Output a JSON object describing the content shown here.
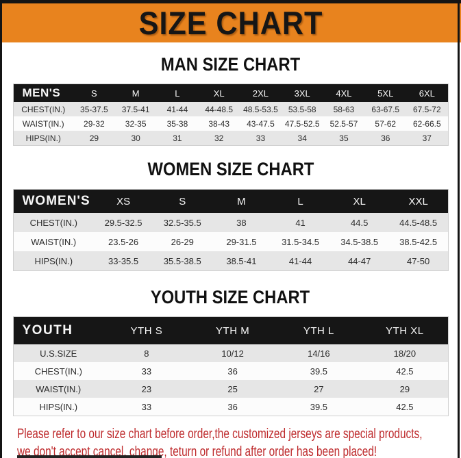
{
  "title": "SIZE CHART",
  "colors": {
    "banner_orange": "#E8831E",
    "header_black": "#161616",
    "row_gray": "#E6E6E6",
    "notice_red": "#BE2A2C"
  },
  "sections": [
    {
      "key": "men",
      "heading": "MAN SIZE CHART",
      "label": "MEN'S",
      "columns": [
        "S",
        "M",
        "L",
        "XL",
        "2XL",
        "3XL",
        "4XL",
        "5XL",
        "6XL"
      ],
      "rows": [
        {
          "label": "CHEST(IN.)",
          "values": [
            "35-37.5",
            "37.5-41",
            "41-44",
            "44-48.5",
            "48.5-53.5",
            "53.5-58",
            "58-63",
            "63-67.5",
            "67.5-72"
          ]
        },
        {
          "label": "WAIST(IN.)",
          "values": [
            "29-32",
            "32-35",
            "35-38",
            "38-43",
            "43-47.5",
            "47.5-52.5",
            "52.5-57",
            "57-62",
            "62-66.5"
          ]
        },
        {
          "label": "HIPS(IN.)",
          "values": [
            "29",
            "30",
            "31",
            "32",
            "33",
            "34",
            "35",
            "36",
            "37"
          ]
        }
      ]
    },
    {
      "key": "women",
      "heading": "WOMEN SIZE CHART",
      "label": "WOMEN'S",
      "columns": [
        "XS",
        "S",
        "M",
        "L",
        "XL",
        "XXL"
      ],
      "rows": [
        {
          "label": "CHEST(IN.)",
          "values": [
            "29.5-32.5",
            "32.5-35.5",
            "38",
            "41",
            "44.5",
            "44.5-48.5"
          ]
        },
        {
          "label": "WAIST(IN.)",
          "values": [
            "23.5-26",
            "26-29",
            "29-31.5",
            "31.5-34.5",
            "34.5-38.5",
            "38.5-42.5"
          ]
        },
        {
          "label": "HIPS(IN.)",
          "values": [
            "33-35.5",
            "35.5-38.5",
            "38.5-41",
            "41-44",
            "44-47",
            "47-50"
          ]
        }
      ]
    },
    {
      "key": "youth",
      "heading": "YOUTH SIZE CHART",
      "label": "YOUTH",
      "columns": [
        "YTH S",
        "YTH M",
        "YTH L",
        "YTH XL"
      ],
      "rows": [
        {
          "label": "U.S.SIZE",
          "values": [
            "8",
            "10/12",
            "14/16",
            "18/20"
          ]
        },
        {
          "label": "CHEST(IN.)",
          "values": [
            "33",
            "36",
            "39.5",
            "42.5"
          ]
        },
        {
          "label": "WAIST(IN.)",
          "values": [
            "23",
            "25",
            "27",
            "29"
          ]
        },
        {
          "label": "HIPS(IN.)",
          "values": [
            "33",
            "36",
            "39.5",
            "42.5"
          ]
        }
      ]
    }
  ],
  "notice": {
    "line1": "Please refer to our size chart before order,the customized jerseys are special products,",
    "line2": "we don't accept cancel, change, teturn or refund after order has been placed!"
  }
}
